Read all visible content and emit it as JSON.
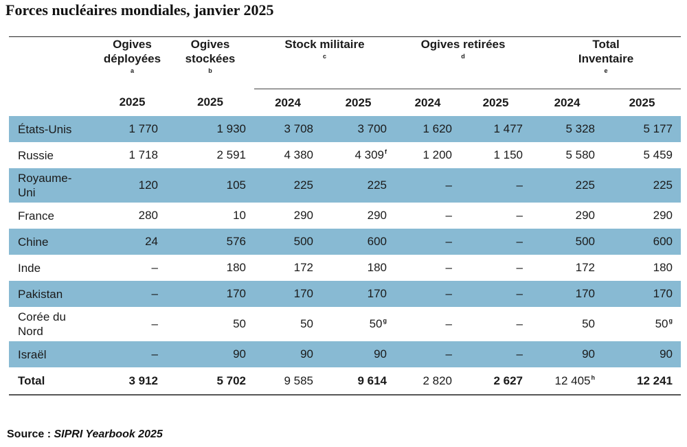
{
  "title": "Forces nucléaires mondiales, janvier 2025",
  "headers": {
    "deployed": {
      "label": "Ogives déployées",
      "line1": "Ogives",
      "line2": "déployées",
      "note": "a"
    },
    "stored": {
      "label": "Ogives stockées",
      "line1": "Ogives",
      "line2": "stockées",
      "note": "b"
    },
    "military": {
      "label": "Stock militaire",
      "note": "c"
    },
    "retired": {
      "label": "Ogives retirées",
      "note": "d"
    },
    "total": {
      "label": "Total Inventaire",
      "line1": "Total",
      "line2": "Inventaire",
      "note": "e"
    }
  },
  "years": [
    "2025",
    "2025",
    "2024",
    "2025",
    "2024",
    "2025",
    "2024",
    "2025"
  ],
  "rows": [
    {
      "country": "États-Unis",
      "c": [
        "1 770",
        "1 930",
        "3 708",
        "3 700",
        "1 620",
        "1 477",
        "5 328",
        "5 177"
      ],
      "notes": [
        "",
        "",
        "",
        "",
        "",
        "",
        "",
        ""
      ]
    },
    {
      "country": "Russie",
      "c": [
        "1 718",
        "2 591",
        "4 380",
        "4 309",
        "1 200",
        "1 150",
        "5 580",
        "5 459"
      ],
      "notes": [
        "",
        "",
        "",
        "f",
        "",
        "",
        "",
        ""
      ]
    },
    {
      "country": "Royaume-Uni",
      "line1": "Royaume-",
      "line2": "Uni",
      "c": [
        "120",
        "105",
        "225",
        "225",
        "–",
        "–",
        "225",
        "225"
      ],
      "notes": [
        "",
        "",
        "",
        "",
        "",
        "",
        "",
        ""
      ]
    },
    {
      "country": "France",
      "c": [
        "280",
        "10",
        "290",
        "290",
        "–",
        "–",
        "290",
        "290"
      ],
      "notes": [
        "",
        "",
        "",
        "",
        "",
        "",
        "",
        ""
      ]
    },
    {
      "country": "Chine",
      "c": [
        "24",
        "576",
        "500",
        "600",
        "–",
        "–",
        "500",
        "600"
      ],
      "notes": [
        "",
        "",
        "",
        "",
        "",
        "",
        "",
        ""
      ]
    },
    {
      "country": "Inde",
      "c": [
        "–",
        "180",
        "172",
        "180",
        "–",
        "–",
        "172",
        "180"
      ],
      "notes": [
        "",
        "",
        "",
        "",
        "",
        "",
        "",
        ""
      ]
    },
    {
      "country": "Pakistan",
      "c": [
        "–",
        "170",
        "170",
        "170",
        "–",
        "–",
        "170",
        "170"
      ],
      "notes": [
        "",
        "",
        "",
        "",
        "",
        "",
        "",
        ""
      ]
    },
    {
      "country": "Corée du Nord",
      "line1": "Corée du",
      "line2": "Nord",
      "c": [
        "–",
        "50",
        "50",
        "50",
        "–",
        "–",
        "50",
        "50"
      ],
      "notes": [
        "",
        "",
        "",
        "g",
        "",
        "",
        "",
        "g"
      ]
    },
    {
      "country": "Israël",
      "c": [
        "–",
        "90",
        "90",
        "90",
        "–",
        "–",
        "90",
        "90"
      ],
      "notes": [
        "",
        "",
        "",
        "",
        "",
        "",
        "",
        ""
      ]
    }
  ],
  "total": {
    "label": "Total",
    "c": [
      "3 912",
      "5 702",
      "9 585",
      "9 614",
      "2 820",
      "2 627",
      "12 405",
      "12 241"
    ],
    "notes": [
      "",
      "",
      "",
      "",
      "",
      "",
      "h",
      ""
    ]
  },
  "source": {
    "prefix": "Source : ",
    "publication": "SIPRI Yearbook 2025"
  },
  "colors": {
    "band": "#88bad3"
  }
}
